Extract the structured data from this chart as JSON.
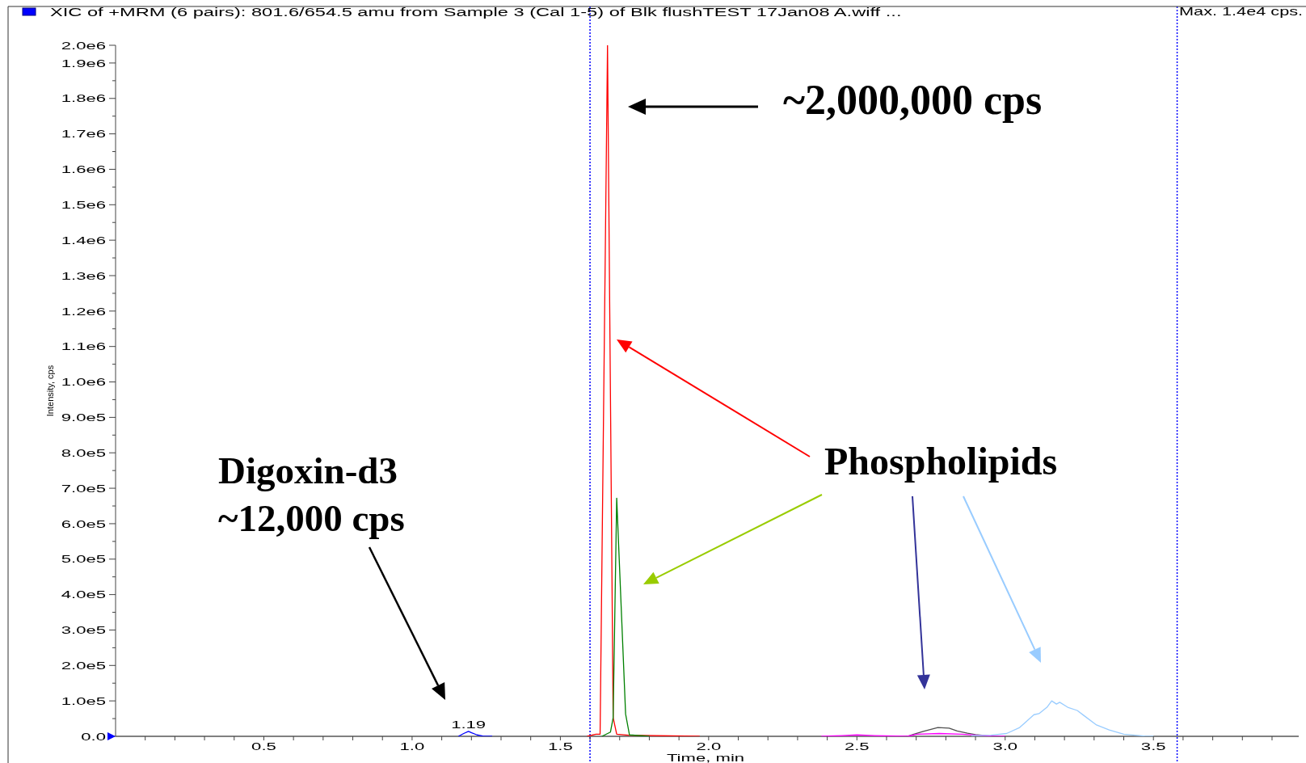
{
  "chart_data": {
    "type": "line",
    "title": "XIC of +MRM (6 pairs): 801.6/654.5 amu from Sample 3 (Cal 1-5) of Blk flushTEST 17Jan08 A.wiff ...",
    "xlabel": "Time, min",
    "ylabel": "Intensity, cps",
    "xlim": [
      0,
      3.99
    ],
    "ylim": [
      0,
      1950000
    ],
    "xticks": [
      {
        "value": 0.1,
        "label": null
      },
      {
        "value": 0.2,
        "label": null
      },
      {
        "value": 0.3,
        "label": null
      },
      {
        "value": 0.4,
        "label": null
      },
      0.5,
      {
        "value": 0.6,
        "label": null
      },
      {
        "value": 0.7,
        "label": null
      },
      {
        "value": 0.8,
        "label": null
      },
      {
        "value": 0.9,
        "label": null
      },
      {
        "value": 1,
        "label": "1.0"
      },
      {
        "value": 1.1,
        "label": null
      },
      {
        "value": 1.2,
        "label": null
      },
      {
        "value": 1.3,
        "label": null
      },
      {
        "value": 1.4,
        "label": null
      },
      1.5,
      {
        "value": 1.6,
        "label": null
      },
      {
        "value": 1.7,
        "label": null
      },
      {
        "value": 1.8,
        "label": null
      },
      {
        "value": 1.9,
        "label": null
      },
      {
        "value": 2,
        "label": "2.0"
      },
      {
        "value": 2.1,
        "label": null
      },
      {
        "value": 2.2,
        "label": null
      },
      {
        "value": 2.3,
        "label": null
      },
      {
        "value": 2.4,
        "label": null
      },
      2.5,
      {
        "value": 2.6,
        "label": null
      },
      {
        "value": 2.7,
        "label": null
      },
      {
        "value": 2.8,
        "label": null
      },
      {
        "value": 2.9,
        "label": null
      },
      {
        "value": 3,
        "label": "3.0"
      },
      {
        "value": 3.1,
        "label": null
      },
      {
        "value": 3.2,
        "label": null
      },
      {
        "value": 3.3,
        "label": null
      },
      {
        "value": 3.4,
        "label": null
      },
      3.5,
      {
        "value": 3.6,
        "label": null
      },
      {
        "value": 3.7,
        "label": null
      },
      {
        "value": 3.8,
        "label": null
      },
      {
        "value": 3.9,
        "label": null
      }
    ],
    "yticks": [
      {
        "value": 0,
        "label": "0.0"
      },
      {
        "value": 50000,
        "label": null
      },
      {
        "value": 100000,
        "label": "1.0e5"
      },
      {
        "value": 150000,
        "label": null
      },
      {
        "value": 200000,
        "label": "2.0e5"
      },
      {
        "value": 250000,
        "label": null
      },
      {
        "value": 300000,
        "label": "3.0e5"
      },
      {
        "value": 350000,
        "label": null
      },
      {
        "value": 400000,
        "label": "4.0e5"
      },
      {
        "value": 450000,
        "label": null
      },
      {
        "value": 500000,
        "label": "5.0e5"
      },
      {
        "value": 550000,
        "label": null
      },
      {
        "value": 600000,
        "label": "6.0e5"
      },
      {
        "value": 650000,
        "label": null
      },
      {
        "value": 700000,
        "label": "7.0e5"
      },
      {
        "value": 750000,
        "label": null
      },
      {
        "value": 800000,
        "label": "8.0e5"
      },
      {
        "value": 850000,
        "label": null
      },
      {
        "value": 900000,
        "label": "9.0e5"
      },
      {
        "value": 950000,
        "label": null
      },
      {
        "value": 1000000,
        "label": "1.0e6"
      },
      {
        "value": 1050000,
        "label": null
      },
      {
        "value": 1100000,
        "label": "1.1e6"
      },
      {
        "value": 1150000,
        "label": null
      },
      {
        "value": 1200000,
        "label": "1.2e6"
      },
      {
        "value": 1250000,
        "label": null
      },
      {
        "value": 1300000,
        "label": "1.3e6"
      },
      {
        "value": 1350000,
        "label": null
      },
      {
        "value": 1400000,
        "label": "1.4e6"
      },
      {
        "value": 1450000,
        "label": null
      },
      {
        "value": 1500000,
        "label": "1.5e6"
      },
      {
        "value": 1550000,
        "label": null
      },
      {
        "value": 1600000,
        "label": "1.6e6"
      },
      {
        "value": 1650000,
        "label": null
      },
      {
        "value": 1700000,
        "label": "1.7e6"
      },
      {
        "value": 1750000,
        "label": null
      },
      {
        "value": 1800000,
        "label": "1.8e6"
      },
      {
        "value": 1850000,
        "label": null
      },
      {
        "value": 1900000,
        "label": "1.9e6"
      },
      {
        "value": 1950000,
        "label": "2.0e6"
      }
    ],
    "series": [
      {
        "color": "#0000ff",
        "x": [
          1.156,
          1.174,
          1.19,
          1.201,
          1.219,
          1.238,
          1.27
        ],
        "values": [
          0,
          8000,
          14000,
          10000,
          4000,
          1000,
          0
        ]
      },
      {
        "color": "#ff0000",
        "x": [
          1.59,
          1.62,
          1.634,
          1.659,
          1.678,
          1.69,
          1.73,
          1.97
        ],
        "values": [
          0,
          6000,
          6000,
          1950000,
          53000,
          6000,
          3000,
          0
        ]
      },
      {
        "color": "#008000",
        "x": [
          1.64,
          1.669,
          1.678,
          1.69,
          1.72,
          1.733,
          1.8
        ],
        "values": [
          0,
          12000,
          53000,
          672000,
          63000,
          4000,
          0
        ]
      },
      {
        "color": "#505050",
        "x": [
          2.6,
          2.67,
          2.692,
          2.724,
          2.773,
          2.811,
          2.838,
          2.873,
          2.9,
          2.951,
          3.0
        ],
        "values": [
          0,
          0,
          6000,
          14000,
          25000,
          23000,
          15000,
          9000,
          5000,
          1000,
          0
        ]
      },
      {
        "color": "#ff00ff",
        "x": [
          2.38,
          2.45,
          2.5,
          2.56,
          2.67,
          2.703,
          2.778,
          2.854,
          2.876,
          2.951,
          3.0
        ],
        "values": [
          0,
          2000,
          4000,
          2000,
          0,
          6000,
          8000,
          6000,
          5000,
          1000,
          0
        ]
      },
      {
        "color": "#99ccff",
        "x": [
          2.886,
          2.951,
          3.005,
          3.049,
          3.097,
          3.114,
          3.141,
          3.157,
          3.173,
          3.184,
          3.211,
          3.243,
          3.265,
          3.308,
          3.351,
          3.4,
          3.47,
          3.5
        ],
        "values": [
          2000,
          3000,
          8000,
          25000,
          61000,
          64000,
          82000,
          100000,
          91000,
          96000,
          82000,
          73000,
          59000,
          32000,
          18000,
          6000,
          1000,
          0
        ]
      }
    ],
    "ref_lines": [
      {
        "axis": "x",
        "value": 1.6,
        "color": "#0000ff",
        "line_style": "dotted"
      },
      {
        "axis": "x",
        "value": 3.58,
        "color": "#0000ff",
        "line_style": "dotted"
      }
    ],
    "annotations": [
      "~2,000,000 cps",
      "Digoxin-d3",
      "~12,000 cps",
      "Phospholipids",
      {
        "text": "1.19",
        "x": 1.19,
        "y": 14000
      },
      "Max. 1.4e4 cps."
    ]
  }
}
